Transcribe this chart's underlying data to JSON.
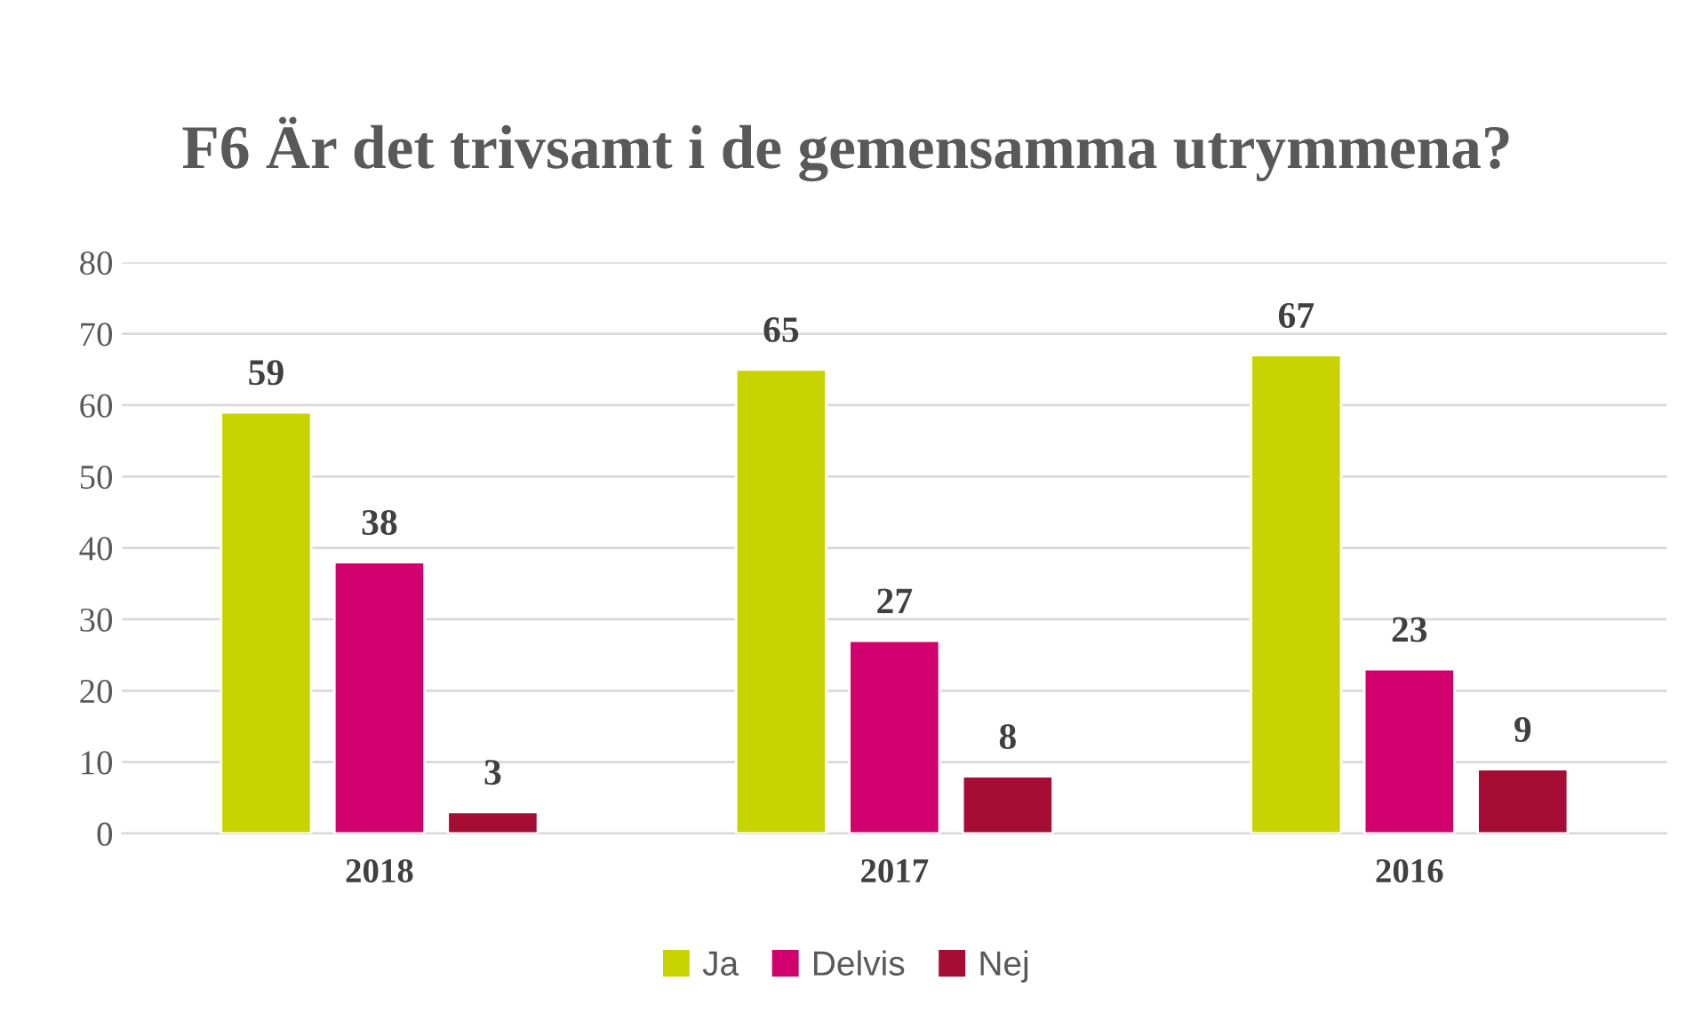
{
  "chart_data": {
    "type": "bar",
    "title": "F6 Är det trivsamt i de gemensamma utrymmena?",
    "categories": [
      "2018",
      "2017",
      "2016"
    ],
    "series": [
      {
        "name": "Ja",
        "color": "#c8d400",
        "values": [
          59,
          65,
          67
        ]
      },
      {
        "name": "Delvis",
        "color": "#d2006e",
        "values": [
          38,
          27,
          23
        ]
      },
      {
        "name": "Nej",
        "color": "#a50d35",
        "values": [
          3,
          8,
          9
        ]
      }
    ],
    "ylim": [
      0,
      80
    ],
    "yticks": [
      0,
      10,
      20,
      30,
      40,
      50,
      60,
      70,
      80
    ],
    "grid": "y",
    "legend": "bottom",
    "data_labels": true
  }
}
